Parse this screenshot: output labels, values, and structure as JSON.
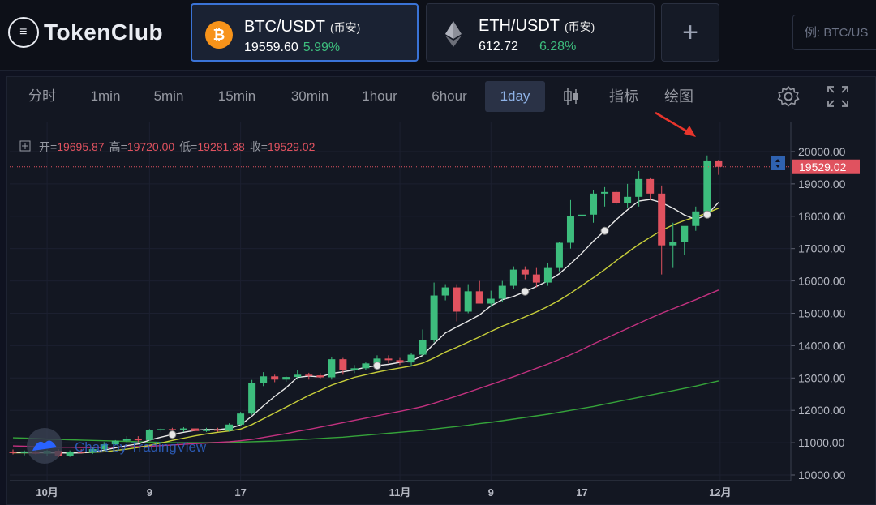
{
  "brand": "TokenClub",
  "pairs": [
    {
      "symbol": "BTC/USDT",
      "exchange": "(币安)",
      "price": "19559.60",
      "change": "5.99%",
      "coin_icon": "bitcoin-icon",
      "coin_color": "#f7931a"
    },
    {
      "symbol": "ETH/USDT",
      "exchange": "(币安)",
      "price": "612.72",
      "change": "6.28%",
      "coin_icon": "ethereum-icon",
      "coin_color": "#627eea"
    }
  ],
  "add_label": "+",
  "search": {
    "placeholder": "例: BTC/US"
  },
  "intervals": [
    "分时",
    "1min",
    "5min",
    "15min",
    "30min",
    "1hour",
    "6hour",
    "1day"
  ],
  "active_interval": "1day",
  "tools": {
    "indicator": "指标",
    "draw": "绘图"
  },
  "ohlc": {
    "open_label": "开=",
    "open": "19695.87",
    "high_label": "高=",
    "high": "19720.00",
    "low_label": "低=",
    "low": "19281.38",
    "close_label": "收=",
    "close": "19529.02"
  },
  "last_price_label": "19529.02",
  "watermark": "Chart by TradingView",
  "colors": {
    "up": "#3dbd7d",
    "down": "#e0525f",
    "accent": "#3a73d6",
    "ma_short": "#e8e8e8",
    "ma_mid": "#c8cf3a",
    "ma_long": "#c2317f",
    "ma_longer": "#35a33a"
  },
  "chart_data": {
    "type": "candlestick",
    "interval": "1day",
    "y_ticks": [
      "20000.00",
      "19000.00",
      "18000.00",
      "17000.00",
      "16000.00",
      "15000.00",
      "14000.00",
      "13000.00",
      "12000.00",
      "11000.00",
      "10000.00"
    ],
    "x_ticks": [
      "10月",
      "9",
      "17",
      "11月",
      "9",
      "17",
      "12月"
    ],
    "ylim": [
      9900,
      20450
    ],
    "candles": [
      [
        10720,
        10790,
        10640,
        10680
      ],
      [
        10680,
        10760,
        10610,
        10730
      ],
      [
        10730,
        10800,
        10640,
        10660
      ],
      [
        10660,
        10780,
        10600,
        10750
      ],
      [
        10750,
        10800,
        10550,
        10590
      ],
      [
        10590,
        10760,
        10560,
        10720
      ],
      [
        10720,
        10800,
        10660,
        10690
      ],
      [
        10690,
        10850,
        10650,
        10800
      ],
      [
        10800,
        11020,
        10760,
        10950
      ],
      [
        10950,
        11080,
        10920,
        11060
      ],
      [
        11060,
        11200,
        11010,
        11110
      ],
      [
        11110,
        11200,
        11000,
        11080
      ],
      [
        11080,
        11420,
        11060,
        11380
      ],
      [
        11380,
        11450,
        11320,
        11420
      ],
      [
        11420,
        11460,
        11350,
        11380
      ],
      [
        11380,
        11480,
        11330,
        11440
      ],
      [
        11440,
        11460,
        11280,
        11360
      ],
      [
        11360,
        11460,
        11330,
        11410
      ],
      [
        11410,
        11460,
        11340,
        11370
      ],
      [
        11370,
        11600,
        11340,
        11560
      ],
      [
        11560,
        11950,
        11520,
        11900
      ],
      [
        11900,
        12940,
        11860,
        12850
      ],
      [
        12850,
        13180,
        12750,
        13050
      ],
      [
        13050,
        13100,
        12870,
        12950
      ],
      [
        12950,
        13050,
        12880,
        13030
      ],
      [
        13030,
        13250,
        12950,
        13100
      ],
      [
        13100,
        13160,
        12950,
        13080
      ],
      [
        13080,
        13150,
        12980,
        13020
      ],
      [
        13020,
        13660,
        12950,
        13580
      ],
      [
        13580,
        13620,
        13100,
        13250
      ],
      [
        13250,
        13400,
        13150,
        13300
      ],
      [
        13300,
        13480,
        13250,
        13450
      ],
      [
        13450,
        13700,
        13350,
        13600
      ],
      [
        13600,
        13700,
        13450,
        13550
      ],
      [
        13550,
        13620,
        13400,
        13480
      ],
      [
        13480,
        13760,
        13350,
        13720
      ],
      [
        13720,
        14500,
        13650,
        14180
      ],
      [
        14180,
        15950,
        14100,
        15550
      ],
      [
        15550,
        15900,
        15400,
        15800
      ],
      [
        15800,
        15900,
        14750,
        15050
      ],
      [
        15050,
        15900,
        15000,
        15680
      ],
      [
        15680,
        16000,
        15400,
        15300
      ],
      [
        15300,
        15700,
        15200,
        15450
      ],
      [
        15450,
        16000,
        15350,
        15850
      ],
      [
        15850,
        16450,
        15750,
        16350
      ],
      [
        16350,
        16450,
        16050,
        16200
      ],
      [
        16200,
        16400,
        15800,
        15950
      ],
      [
        15950,
        16550,
        15850,
        16400
      ],
      [
        16400,
        17200,
        16300,
        17180
      ],
      [
        17180,
        18500,
        17000,
        18000
      ],
      [
        18000,
        18150,
        17550,
        18050
      ],
      [
        18050,
        18800,
        17800,
        18700
      ],
      [
        18700,
        18900,
        18300,
        18750
      ],
      [
        18750,
        18800,
        18350,
        18400
      ],
      [
        18400,
        19000,
        18250,
        18600
      ],
      [
        18600,
        19400,
        18300,
        19150
      ],
      [
        19150,
        19200,
        18500,
        18700
      ],
      [
        18700,
        18950,
        16200,
        17100
      ],
      [
        17100,
        17800,
        16400,
        17200
      ],
      [
        17200,
        17650,
        16800,
        17700
      ],
      [
        17700,
        18300,
        17550,
        18150
      ],
      [
        18150,
        19880,
        18000,
        19700
      ],
      [
        19700,
        19720,
        19281,
        19529
      ]
    ],
    "ma_short": [
      10700,
      10700,
      10700,
      10690,
      10690,
      10680,
      10690,
      10710,
      10770,
      10840,
      10910,
      10960,
      11080,
      11170,
      11250,
      11320,
      11380,
      11410,
      11400,
      11440,
      11550,
      11820,
      12140,
      12430,
      12700,
      13020,
      13060,
      13030,
      13140,
      13190,
      13250,
      13330,
      13380,
      13420,
      13480,
      13520,
      13700,
      14060,
      14390,
      14580,
      14760,
      14950,
      15230,
      15420,
      15520,
      15670,
      15830,
      16000,
      16220,
      16530,
      16860,
      17230,
      17550,
      17890,
      18200,
      18470,
      18520,
      18420,
      18250,
      18040,
      17900,
      18050,
      18430
    ],
    "ma_mid": [
      10690,
      10690,
      10690,
      10690,
      10690,
      10690,
      10690,
      10700,
      10720,
      10760,
      10800,
      10850,
      10920,
      10990,
      11070,
      11140,
      11210,
      11270,
      11320,
      11360,
      11420,
      11560,
      11740,
      11920,
      12100,
      12280,
      12460,
      12620,
      12780,
      12900,
      13020,
      13100,
      13180,
      13250,
      13310,
      13370,
      13460,
      13620,
      13800,
      13950,
      14110,
      14270,
      14440,
      14600,
      14740,
      14890,
      15040,
      15210,
      15400,
      15620,
      15860,
      16100,
      16350,
      16620,
      16880,
      17130,
      17350,
      17560,
      17730,
      17870,
      17980,
      18100,
      18250
    ],
    "ma_long": [
      10900,
      10890,
      10880,
      10870,
      10860,
      10860,
      10850,
      10850,
      10850,
      10860,
      10870,
      10880,
      10890,
      10910,
      10930,
      10950,
      10970,
      10990,
      11010,
      11030,
      11060,
      11100,
      11160,
      11220,
      11280,
      11350,
      11410,
      11480,
      11550,
      11620,
      11690,
      11760,
      11830,
      11900,
      11970,
      12040,
      12120,
      12220,
      12330,
      12440,
      12560,
      12680,
      12800,
      12920,
      13040,
      13170,
      13300,
      13430,
      13570,
      13720,
      13880,
      14050,
      14210,
      14370,
      14530,
      14690,
      14850,
      15000,
      15140,
      15280,
      15420,
      15570,
      15720
    ],
    "ma_longer": [
      11150,
      11140,
      11130,
      11110,
      11100,
      11090,
      11080,
      11070,
      11060,
      11050,
      11040,
      11030,
      11020,
      11010,
      11000,
      11000,
      11000,
      11000,
      11010,
      11010,
      11020,
      11030,
      11040,
      11050,
      11070,
      11090,
      11110,
      11130,
      11150,
      11170,
      11200,
      11230,
      11260,
      11290,
      11320,
      11350,
      11380,
      11420,
      11460,
      11500,
      11540,
      11590,
      11630,
      11680,
      11730,
      11780,
      11830,
      11880,
      11940,
      12000,
      12060,
      12120,
      12190,
      12260,
      12330,
      12400,
      12470,
      12540,
      12610,
      12680,
      12750,
      12830,
      12910
    ]
  }
}
